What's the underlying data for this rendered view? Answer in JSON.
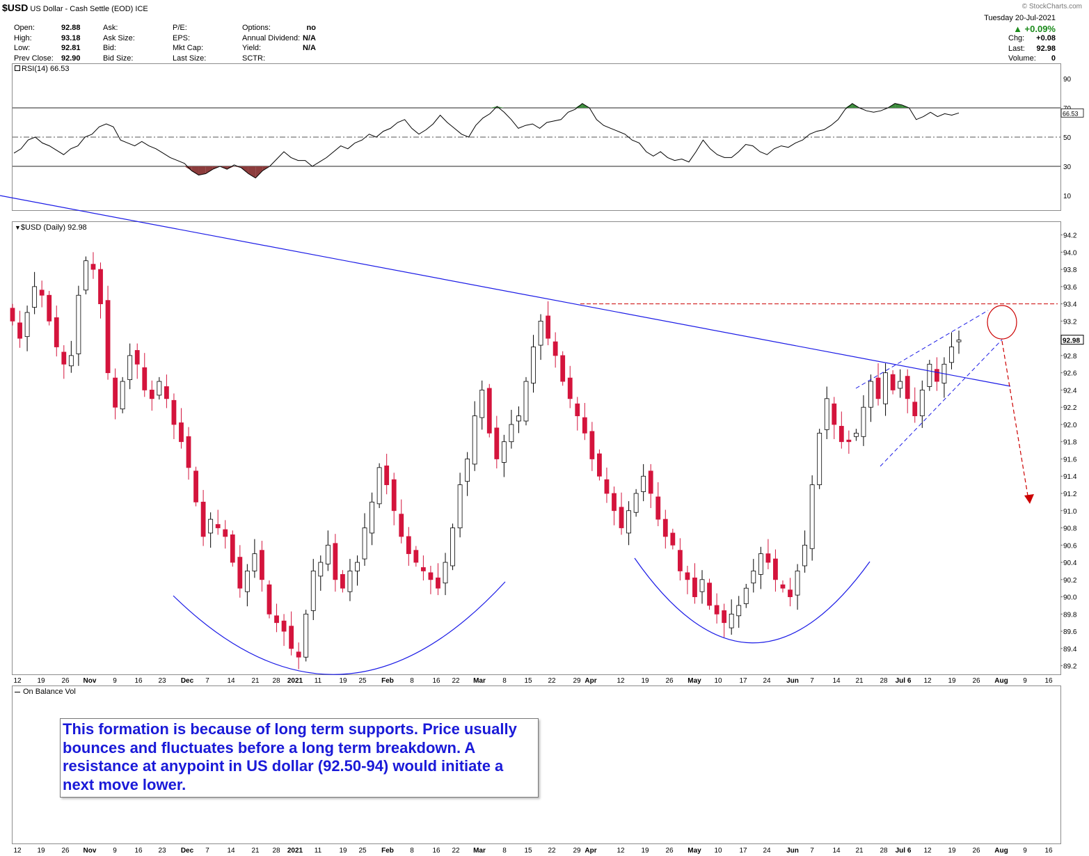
{
  "header": {
    "symbol": "$USD",
    "description": "US Dollar - Cash Settle (EOD)",
    "exchange": "ICE",
    "watermark": "© StockCharts.com",
    "date": "Tuesday  20-Jul-2021",
    "change_pct": "▲ +0.09%",
    "change_color": "#1a8a1a",
    "fields_col1": [
      {
        "label": "Open:",
        "value": "92.88"
      },
      {
        "label": "High:",
        "value": "93.18"
      },
      {
        "label": "Low:",
        "value": "92.81"
      },
      {
        "label": "Prev Close:",
        "value": "92.90"
      }
    ],
    "fields_col2": [
      {
        "label": "Ask:",
        "value": ""
      },
      {
        "label": "Ask Size:",
        "value": ""
      },
      {
        "label": "Bid:",
        "value": ""
      },
      {
        "label": "Bid Size:",
        "value": ""
      }
    ],
    "fields_col3": [
      {
        "label": "P/E:",
        "value": ""
      },
      {
        "label": "EPS:",
        "value": ""
      },
      {
        "label": "Mkt Cap:",
        "value": ""
      },
      {
        "label": "Last Size:",
        "value": ""
      }
    ],
    "fields_col4": [
      {
        "label": "Options:",
        "value": "no"
      },
      {
        "label": "Annual Dividend:",
        "value": "N/A"
      },
      {
        "label": "Yield:",
        "value": "N/A"
      },
      {
        "label": "SCTR:",
        "value": ""
      }
    ],
    "fields_right": [
      {
        "label": "Chg:",
        "value": "+0.08"
      },
      {
        "label": "Last:",
        "value": "92.98"
      },
      {
        "label": "Volume:",
        "value": "0"
      }
    ]
  },
  "rsi_panel": {
    "label": "RSI(14) 66.53",
    "value_badge": "66.53"
  },
  "price_panel": {
    "label": "$USD (Daily) 92.98",
    "value_badge": "92.98"
  },
  "obv_panel": {
    "label": "On Balance Vol"
  },
  "annotation": {
    "text": "This formation is because of long term supports. Price usually bounces and fluctuates before a long term breakdown. A resistance at anypoint in US dollar (92.50-94) would initiate a next move lower."
  },
  "colors": {
    "up_candle": "#ffffff",
    "down_candle": "#d4143c",
    "trend_line": "#1a1ae6",
    "resistance_line": "#cc0000",
    "rsi_fill_high": "#3c8c3c",
    "rsi_fill_low": "#8c3c3c"
  },
  "chart_data": [
    {
      "type": "line",
      "name": "RSI(14)",
      "yticks": [
        10,
        30,
        50,
        70,
        90
      ],
      "ylim": [
        0,
        100
      ],
      "reference_lines": [
        30,
        50,
        70
      ],
      "last_value": 66.53,
      "values": [
        39,
        42,
        48,
        50,
        46,
        44,
        41,
        38,
        42,
        44,
        50,
        52,
        57,
        59,
        57,
        48,
        46,
        44,
        47,
        44,
        42,
        39,
        36,
        34,
        32,
        27,
        24,
        25,
        28,
        30,
        28,
        31,
        29,
        25,
        22,
        27,
        30,
        35,
        40,
        36,
        34,
        34,
        30,
        33,
        36,
        40,
        44,
        42,
        46,
        48,
        52,
        50,
        54,
        56,
        60,
        62,
        56,
        52,
        55,
        59,
        65,
        60,
        56,
        52,
        50,
        58,
        63,
        66,
        71,
        67,
        62,
        56,
        58,
        59,
        56,
        60,
        61,
        62,
        67,
        69,
        73,
        70,
        62,
        58,
        56,
        54,
        52,
        48,
        46,
        40,
        37,
        40,
        36,
        34,
        35,
        33,
        40,
        48,
        42,
        38,
        36,
        36,
        40,
        45,
        44,
        40,
        38,
        42,
        44,
        43,
        46,
        48,
        52,
        54,
        55,
        58,
        62,
        69,
        73,
        70,
        68,
        67,
        68,
        70,
        73,
        72,
        70,
        62,
        64,
        67,
        64,
        66,
        65,
        66.53
      ]
    },
    {
      "type": "candlestick",
      "name": "$USD (Daily)",
      "yticks": [
        89.2,
        89.4,
        89.6,
        89.8,
        90.0,
        90.2,
        90.4,
        90.6,
        90.8,
        91.0,
        91.2,
        91.4,
        91.6,
        91.8,
        92.0,
        92.2,
        92.4,
        92.6,
        92.8,
        93.0,
        93.2,
        93.4,
        93.6,
        93.8,
        94.0,
        94.2
      ],
      "ylim": [
        89.1,
        94.35
      ],
      "xticks": [
        "12",
        "19",
        "26",
        "Nov",
        "9",
        "16",
        "23",
        "Dec",
        "7",
        "14",
        "21",
        "28",
        "2021",
        "11",
        "19",
        "25",
        "Feb",
        "8",
        "16",
        "22",
        "Mar",
        "8",
        "15",
        "22",
        "29",
        "Apr",
        "12",
        "19",
        "26",
        "May",
        "10",
        "17",
        "24",
        "Jun",
        "7",
        "14",
        "21",
        "28",
        "Jul 6",
        "12",
        "19",
        "26",
        "Aug",
        "9",
        "16"
      ],
      "last_value": 92.98,
      "close": [
        93.2,
        93.0,
        93.3,
        93.6,
        93.5,
        93.2,
        92.9,
        92.7,
        92.8,
        93.5,
        93.9,
        93.8,
        93.4,
        92.6,
        92.2,
        92.5,
        92.8,
        92.7,
        92.4,
        92.3,
        92.5,
        92.3,
        92.0,
        91.8,
        91.5,
        91.1,
        90.7,
        90.9,
        90.8,
        90.7,
        90.4,
        90.1,
        90.3,
        90.5,
        90.2,
        89.8,
        89.7,
        89.6,
        89.4,
        89.3,
        89.8,
        90.3,
        90.4,
        90.6,
        90.2,
        90.1,
        90.3,
        90.4,
        90.8,
        91.1,
        91.5,
        91.3,
        91.0,
        90.7,
        90.5,
        90.4,
        90.3,
        90.2,
        90.1,
        90.4,
        90.8,
        91.3,
        91.6,
        92.1,
        92.4,
        91.9,
        91.6,
        91.8,
        92.0,
        92.1,
        92.5,
        92.9,
        93.2,
        93.0,
        92.8,
        92.5,
        92.3,
        92.1,
        91.9,
        91.6,
        91.4,
        91.2,
        91.0,
        90.8,
        91.0,
        91.2,
        91.4,
        91.2,
        90.9,
        90.7,
        90.6,
        90.3,
        90.2,
        90.0,
        90.2,
        89.9,
        89.8,
        89.7,
        89.8,
        89.9,
        90.1,
        90.3,
        90.5,
        90.4,
        90.2,
        90.1,
        90.0,
        90.3,
        90.6,
        91.3,
        91.9,
        92.3,
        92.0,
        91.8,
        91.8,
        91.9,
        92.2,
        92.5,
        92.3,
        92.6,
        92.4,
        92.5,
        92.3,
        92.1,
        92.4,
        92.7,
        92.5,
        92.7,
        92.9,
        92.98
      ],
      "overlays": [
        "descending trendline",
        "horizontal resistance 93.4",
        "rising wedge",
        "two rounded bottoms",
        "projected move lower"
      ]
    },
    {
      "type": "line",
      "name": "On Balance Vol",
      "values": []
    }
  ]
}
